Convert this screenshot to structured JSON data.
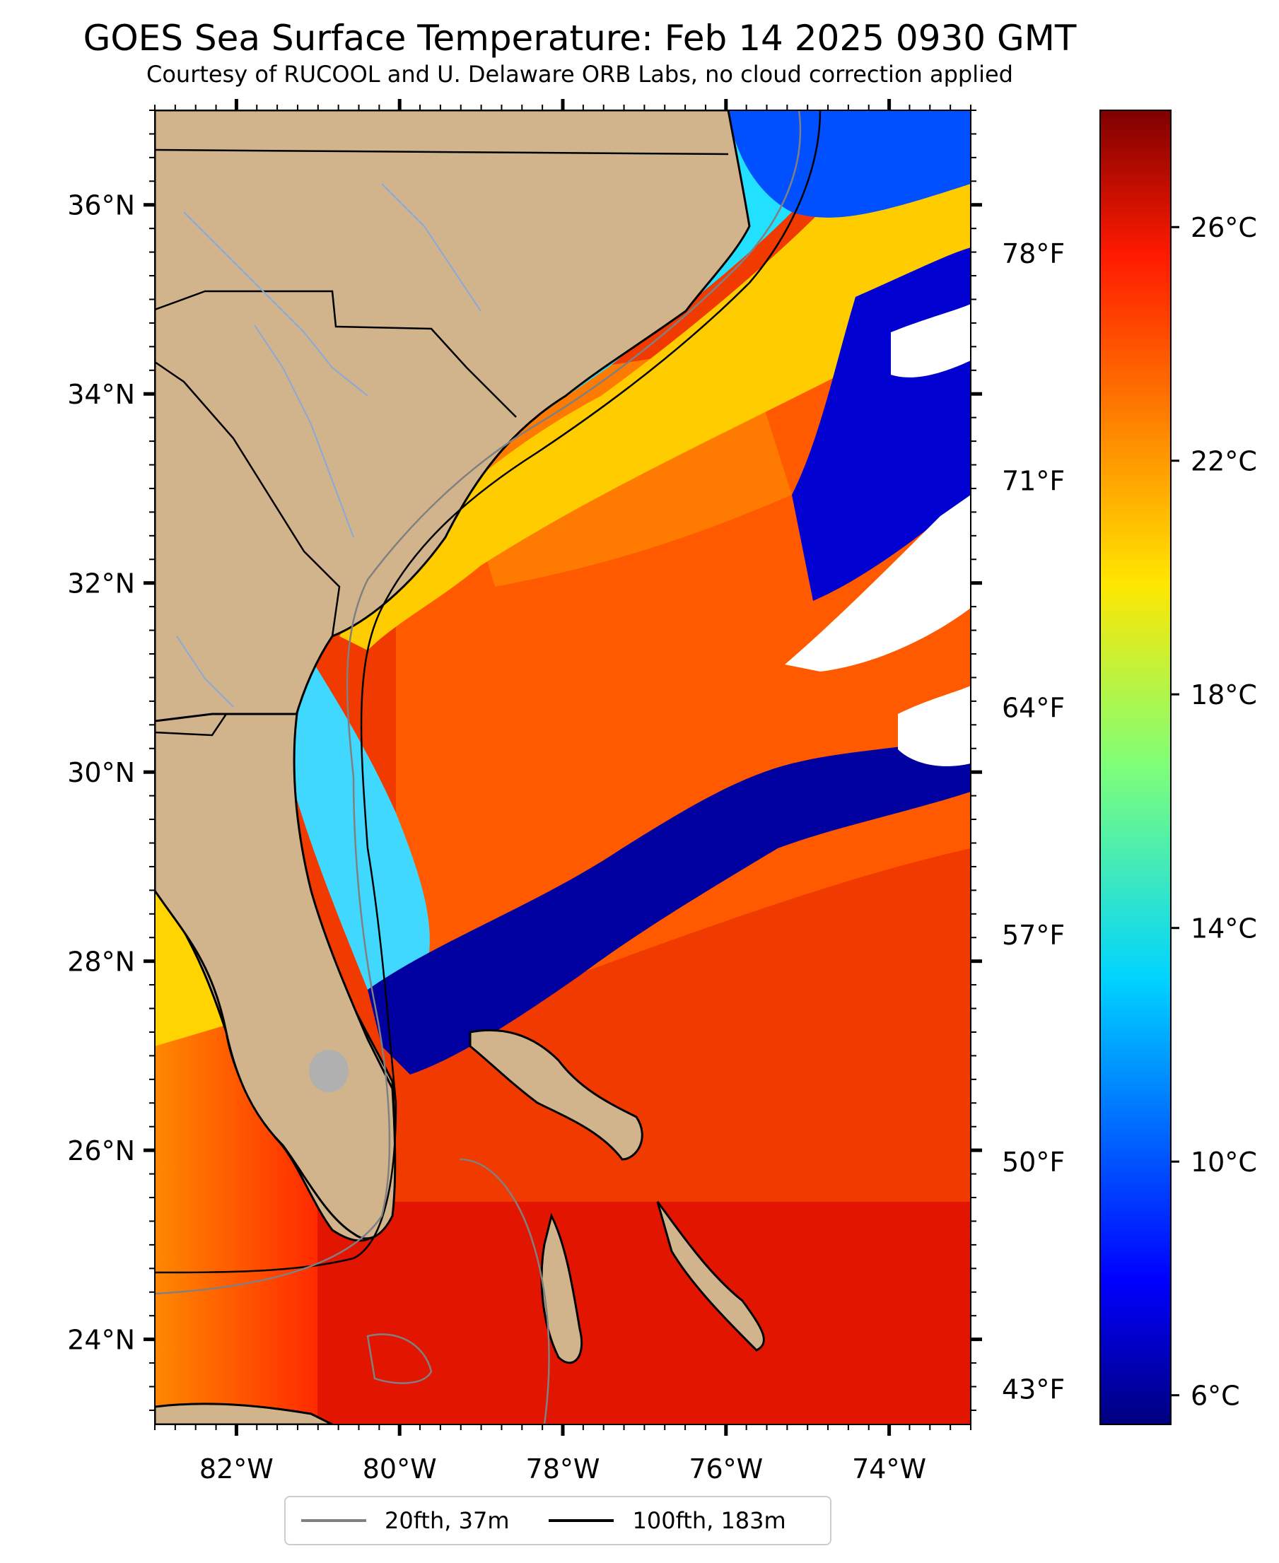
{
  "header": {
    "title": "GOES Sea Surface Temperature: Feb 14 2025 0930 GMT",
    "subtitle": "Courtesy of RUCOOL and U. Delaware ORB Labs, no cloud correction applied"
  },
  "map": {
    "projection": "PlateCarree",
    "lon_range": [
      -83.0,
      -73.0
    ],
    "lat_range": [
      23.1,
      37.0
    ],
    "land_color": "#d2b48c",
    "cloud_color": "#ffffff",
    "lon_ticks": [
      -82,
      -80,
      -78,
      -76,
      -74
    ],
    "lon_tick_labels": [
      "82°W",
      "80°W",
      "78°W",
      "76°W",
      "74°W"
    ],
    "lat_ticks": [
      24,
      26,
      28,
      30,
      32,
      34,
      36
    ],
    "lat_tick_labels": [
      "24°N",
      "26°N",
      "28°N",
      "30°N",
      "32°N",
      "34°N",
      "36°N"
    ],
    "minor_tick_step_deg": 0.25,
    "features": [
      "coastline",
      "state borders",
      "rivers",
      "lakes"
    ]
  },
  "colorbar": {
    "colormap": "jet",
    "range_c": [
      5.5,
      28.0
    ],
    "celsius_ticks": [
      6,
      10,
      14,
      18,
      22,
      26
    ],
    "celsius_labels": [
      "6°C",
      "10°C",
      "14°C",
      "18°C",
      "22°C",
      "26°C"
    ],
    "fahrenheit_ticks": [
      43,
      50,
      57,
      64,
      71,
      78
    ],
    "fahrenheit_labels": [
      "43°F",
      "50°F",
      "57°F",
      "64°F",
      "71°F",
      "78°F"
    ]
  },
  "legend": {
    "items": [
      {
        "label": "20fth, 37m",
        "color": "#808080"
      },
      {
        "label": "100fth, 183m",
        "color": "#000000"
      }
    ]
  }
}
